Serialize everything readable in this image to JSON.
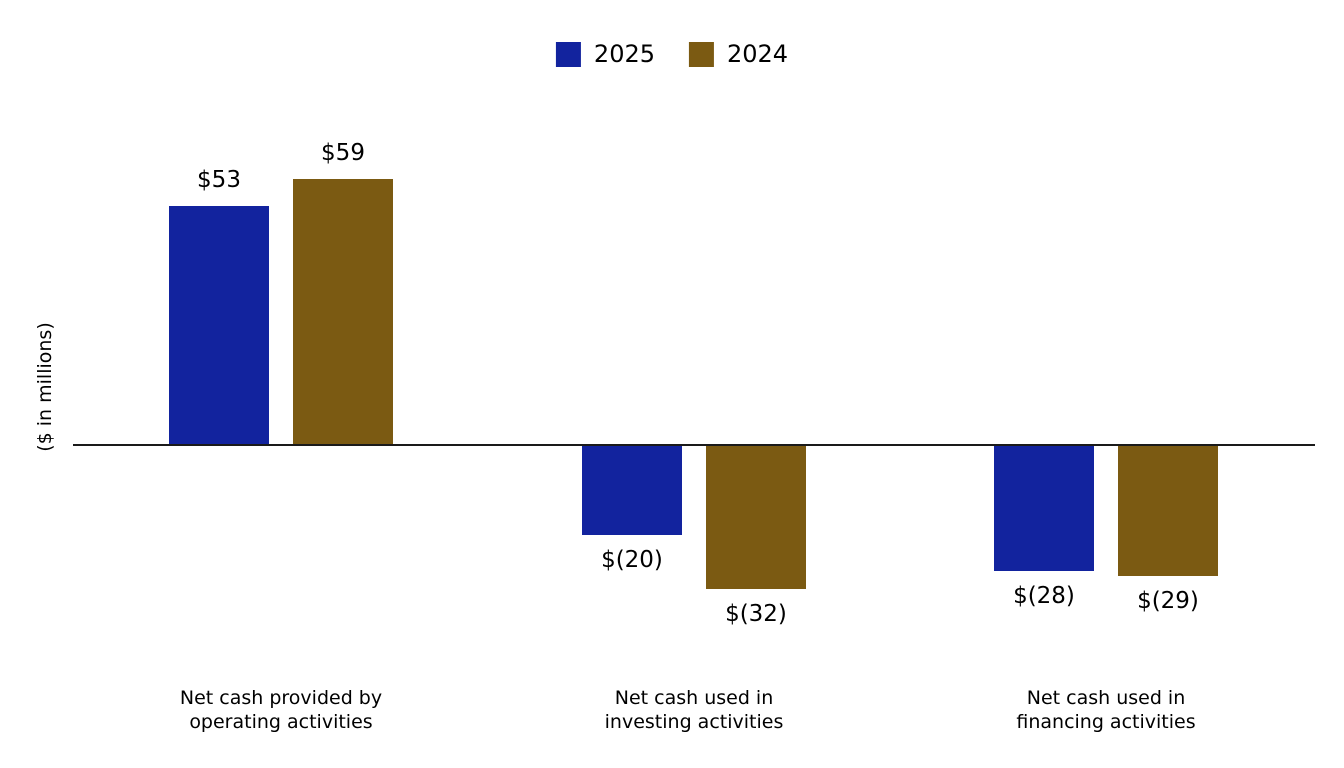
{
  "chart_data": {
    "type": "bar",
    "title": "",
    "ylabel": "($ in millions)",
    "categories": [
      "Net cash provided by\noperating activities",
      "Net cash used in\ninvesting activities",
      "Net cash used in\nfinancing activities"
    ],
    "series": [
      {
        "name": "2025",
        "color": "#12239E",
        "values": [
          53,
          -20,
          -28
        ],
        "value_labels": [
          "$53",
          "$(20)",
          "$(28)"
        ]
      },
      {
        "name": "2024",
        "color": "#7B5A12",
        "values": [
          59,
          -32,
          -29
        ],
        "value_labels": [
          "$59",
          "$(32)",
          "$(29)"
        ]
      }
    ],
    "legend_position": "top-center",
    "grid": false,
    "axis_style": "zero-line-only",
    "ylim": [
      -40,
      70
    ]
  },
  "colors": {
    "axis_line": "#1a1a1a",
    "background": "#ffffff",
    "text": "#000000"
  }
}
